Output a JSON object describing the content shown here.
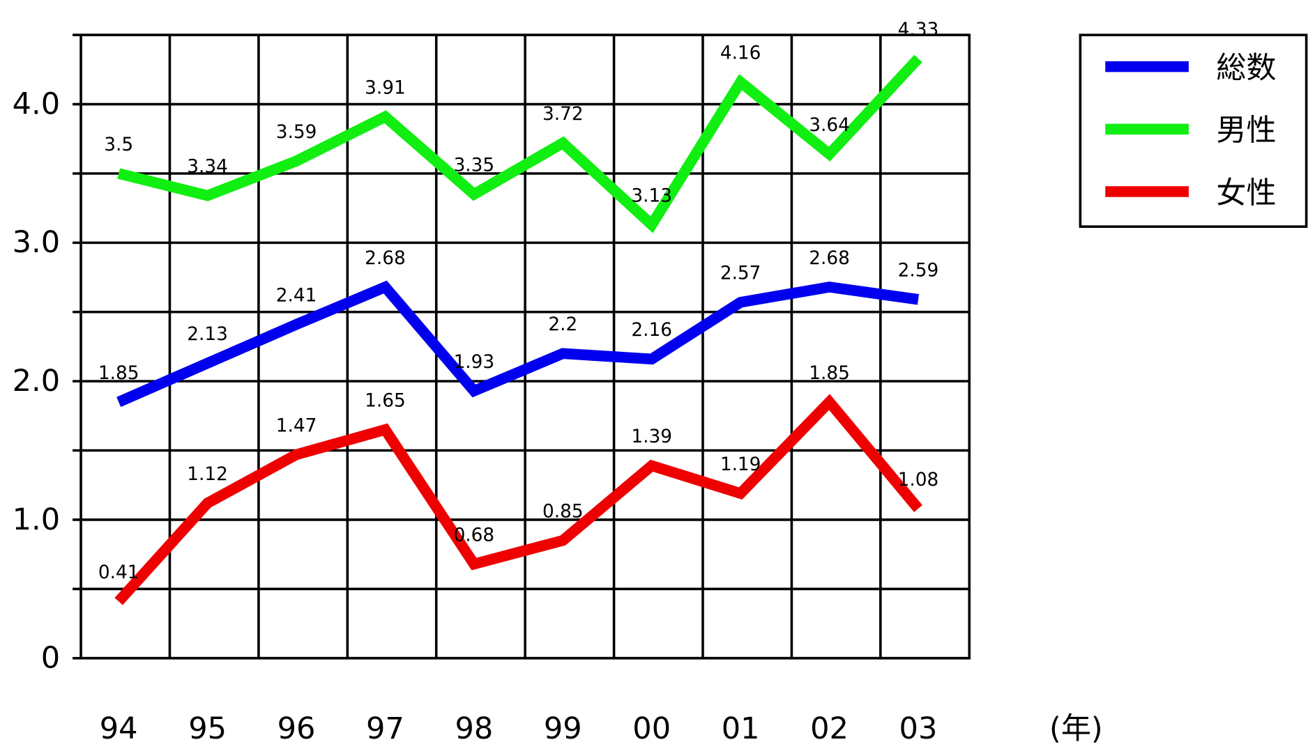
{
  "chart_data": {
    "type": "line",
    "categories": [
      "94",
      "95",
      "96",
      "97",
      "98",
      "99",
      "00",
      "01",
      "02",
      "03"
    ],
    "x_label": "(年)",
    "series": [
      {
        "name": "総数",
        "color": "#0000ee",
        "values": [
          1.85,
          2.13,
          2.41,
          2.68,
          1.93,
          2.2,
          2.16,
          2.57,
          2.68,
          2.59
        ]
      },
      {
        "name": "男性",
        "color": "#11ee11",
        "values": [
          3.5,
          3.34,
          3.59,
          3.91,
          3.35,
          3.72,
          3.13,
          4.16,
          3.64,
          4.33
        ]
      },
      {
        "name": "女性",
        "color": "#ee0000",
        "values": [
          0.41,
          1.12,
          1.47,
          1.65,
          0.68,
          0.85,
          1.39,
          1.19,
          1.85,
          1.08
        ]
      }
    ],
    "ylim": [
      0,
      4.5
    ],
    "yticks": [
      0,
      {
        "value": 1,
        "label": "1.0"
      },
      {
        "value": 2,
        "label": "2.0"
      },
      {
        "value": 3,
        "label": "3.0"
      },
      {
        "value": 4,
        "label": "4.0"
      }
    ],
    "minor_yticks": [
      0.5,
      1.5,
      2.5,
      3.5,
      4.5
    ],
    "grid": true,
    "legend": "right"
  }
}
